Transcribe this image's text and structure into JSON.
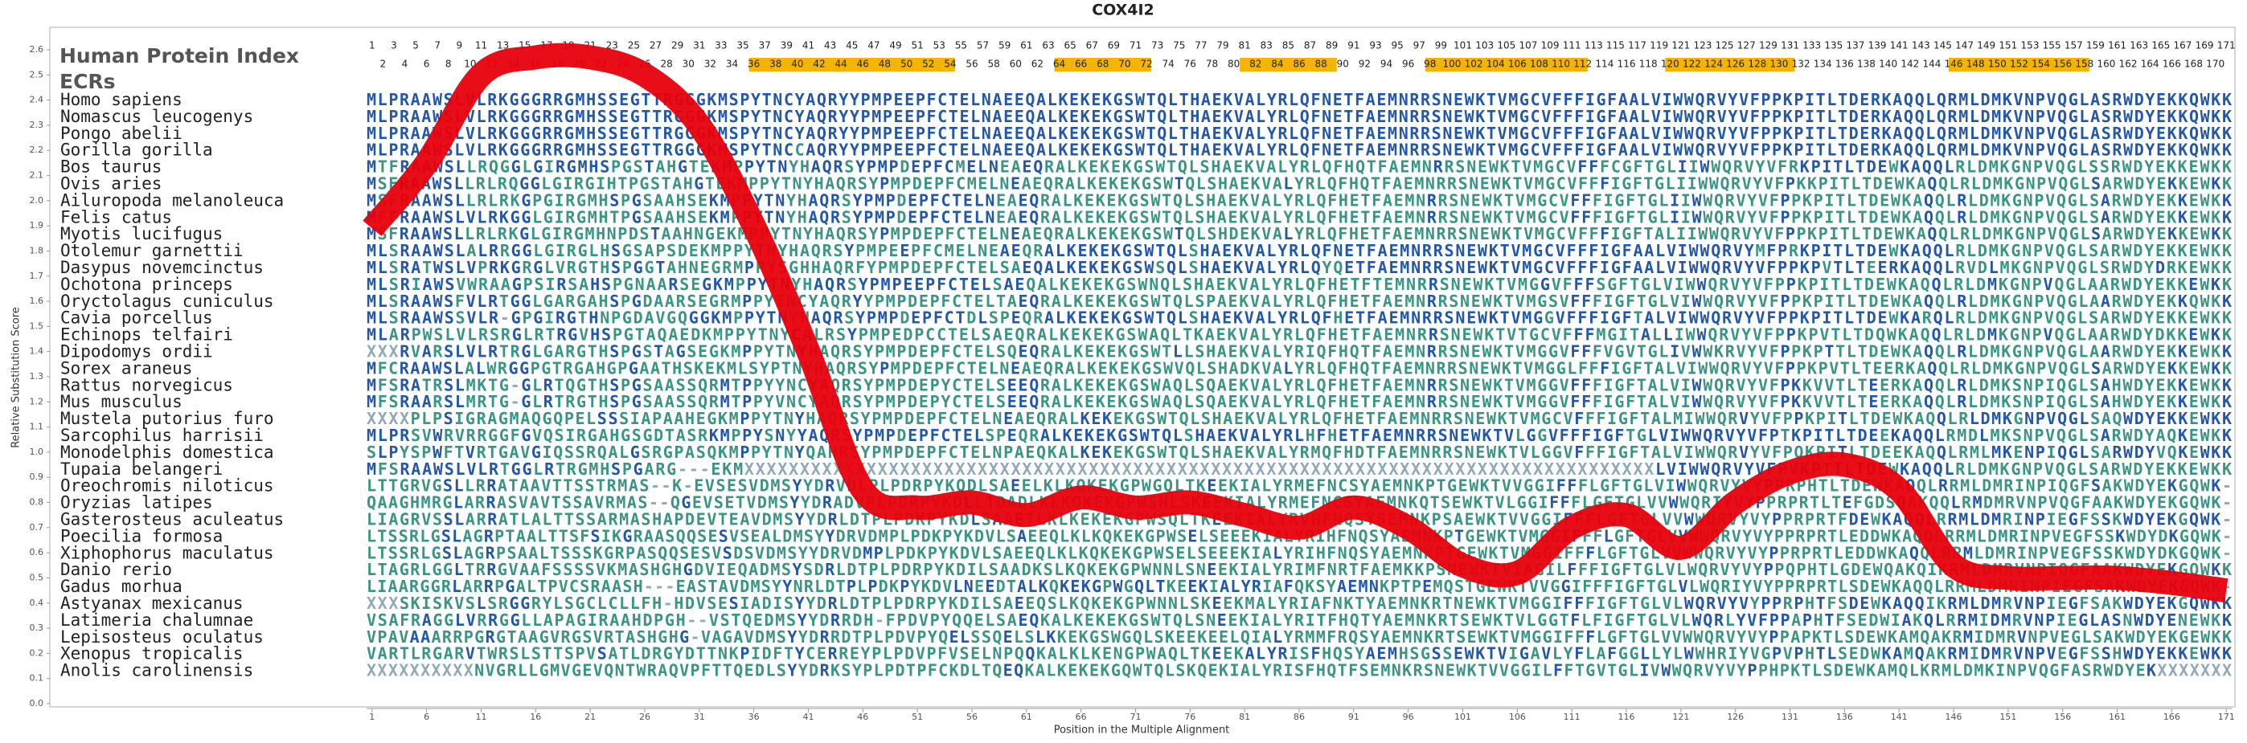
{
  "title": "COX4I2",
  "header": {
    "index_title": "Human Protein Index",
    "ecr_label": "ECRs"
  },
  "positions": [
    1,
    2,
    3,
    4,
    5,
    6,
    7,
    8,
    9,
    10,
    11,
    12,
    13,
    14,
    15,
    16,
    17,
    18,
    19,
    20,
    21,
    22,
    23,
    24,
    25,
    26,
    27,
    28,
    29,
    30,
    31,
    32,
    33,
    34,
    35,
    36,
    37,
    38,
    39,
    40,
    41,
    42,
    43,
    44,
    45,
    46,
    47,
    48,
    49,
    50,
    51,
    52,
    53,
    54,
    55,
    56,
    57,
    58,
    59,
    60,
    61,
    62,
    63,
    64,
    65,
    66,
    67,
    68,
    69,
    70,
    71,
    72,
    73,
    74,
    75,
    76,
    77,
    78,
    79,
    80,
    81,
    82,
    83,
    84,
    85,
    86,
    87,
    88,
    89,
    90,
    91,
    92,
    93,
    94,
    95,
    96,
    97,
    98,
    99,
    100,
    101,
    102,
    103,
    104,
    105,
    106,
    107,
    108,
    109,
    110,
    111,
    112,
    113,
    114,
    115,
    116,
    117,
    118,
    119,
    120,
    121,
    122,
    123,
    124,
    125,
    126,
    127,
    128,
    129,
    130,
    131,
    132,
    133,
    134,
    135,
    136,
    137,
    138,
    139,
    140,
    141,
    142,
    143,
    144,
    145,
    146,
    147,
    148,
    149,
    150,
    151,
    152,
    153,
    154,
    155,
    156,
    157,
    158,
    159,
    160,
    161,
    162,
    163,
    164,
    165,
    166,
    167,
    168,
    169,
    170,
    171
  ],
  "ecrs": [
    [
      36,
      54
    ],
    [
      64,
      72
    ],
    [
      81,
      89
    ],
    [
      98,
      112
    ],
    [
      120,
      131
    ],
    [
      146,
      158
    ]
  ],
  "ecr_color": "#f5b400",
  "alignment": {
    "rows": [
      {
        "species": "Homo sapiens",
        "sequence": "MLPRAAWSLVLRKGGGRRGMHSSEGTTRGGGKMSPYTNCYAQRYYPMPEEPFCTELNAEEQALKEKEKGSWTQLTHAEKVALYRLQFNETFAEMNRRSNEWKTVMGCVFFFIGFAALVIWWQRVYVFPPKPITLTDERKAQQLQRMLDMKVNPVQGLASRWDYEKKQWKK"
      },
      {
        "species": "Nomascus leucogenys",
        "sequence": "MLPRAAWSLVLRKGGGRRGMHSSEGTTRGGGKMSPYTNCYAQRYYPMPEEPFCTELNAEEQALKEKEKGSWTQLTHAEKVALYRLQFNETFAEMNRRSNEWKTVMGCVFFFIGFAALVIWWQRVYVFPPKPITLTDERKAQQLQRMLDMKVNPVQGLASRWDYEKKQWKK"
      },
      {
        "species": "Pongo abelii",
        "sequence": "MLPRAAWSLVLRKGGGRRGMHSSEGTTRGGGKMSPYTNCYAQRYYPMPEEPFCTELNAEEQALKEKEKGSWTQLTHAEKVALYRLQFNETFAEMNRRSNEWKTVMGCVFFFIGFAALVIWWQRVYVFPPKPITLTDERKAQQLQRMLDMKVNPVQGLASRWDYEKKQWKK"
      },
      {
        "species": "Gorilla gorilla",
        "sequence": "MLPRAAWSLVLRKGGGRRGMHSSEGTTRGGGKMSPYTNCCAQRYYPMPEEPFCTELNAEEQALKEKEKGSWTQLTHAEKVALYRLQFNETFAEMNRRSNEWKTVMGCVFFFIGFAALVIWWQRVYVFPPKPITLTDERKAQQLQRMLDMKVNPVQGLASRWDYEKKQWKK"
      },
      {
        "species": "Bos taurus",
        "sequence": "MTFRAAWSLLRQGGLGIRGMHSPGSTAHGTEKMPPYTNYHAQRSYPMPDEPFCMELNEAEQRALKEKEKGSWTQLSHAEKVALYRLQFHQTFAEMNRRSNEWKTVMGCVFFFCGFTGLIIWWQRVYVFRKPITLTDEWKAQQLRLDMKGNPVQGLSSRWDYEKKEWKK"
      },
      {
        "species": "Ovis aries",
        "sequence": "MSFRAAWSLLRLRQGGLGIRGIHTPGSTAHGTEKMPPYTNYHAQRSYPMPDEPFCMELNEAEQRALKEKEKGSWTQLSHAEKVALYRLQFHQTFAEMNRRSNEWKTVMGCVFFFIGFTGLIIWWQRVYVFPKKPITLTDEWKAQQLRLDMKGNPVQGLSARWDYEKKEWKK"
      },
      {
        "species": "Ailuropoda melanoleuca",
        "sequence": "MSFRAAWSLLRLRKGPGIRGMHSPGSAAHSEKMPPYTNYHAQRSYPMPDEPFCTELNEAEQRALKEKEKGSWTQLSHAEKVALYRLQFHETFAEMNRRSNEWKTVMGCVFFFIGFTGLIIWWQRVYVFPPKPITLTDEWKAQQLRLDMKGNPVQGLSARWDYEKKEWKK"
      },
      {
        "species": "Felis catus",
        "sequence": "MFFRAAWSLVLRKGGLGIRGMHTPGSAAHSEKMPPYTNYHAQRSYPMPDEPFCTELNEAEQRALKEKEKGSWTQLSHAEKVALYRLQFHETFAEMNRRSNEWKTVMGCVFFFIGFTGLIIWWQRVYVFPPKPITLTDEWKAQQLRLDMKGNPVQGLSARWDYEKKEWKK"
      },
      {
        "species": "Myotis lucifugus",
        "sequence": "MSFRAAWSLLRLRKGLGIRGMHNPDSTAAHNGEKMPPYTNYHAQRSYPMPDEPFCTELNEAEQRALKEKEKGSWTQLSHDEKVALYRLQFHETFAEMNRRSNEWKTVMGCVFFFIGFTALIIWWQRVYVFPPKPITLTDEWKAQQLRLDMKGNPVQGLSARWDYEKKEWKK"
      },
      {
        "species": "Otolemur garnettii",
        "sequence": "MLSRAAWSLALRRGGLGIRGLHSGSAPSDEKMPPYTNYHAQRSYPMPEEPFCMELNEAEQRALKEKEKGSWTQLSHAEKVALYRLQFNETFAEMNRRSNEWKTVMGCVFFFIGFAALVIWWQRVYMFPRKPITLTDEWKAQQLRLDMKGNPVQGLSARWDYEKKEWKK"
      },
      {
        "species": "Dasypus novemcinctus",
        "sequence": "MLSRATWSLVPRKGRGLVRGTHSPGGTAHNEGRMPPYSGHHAQRFYPMPDEPFCTELSAEQALKEKEKGSWSQLSHAEKVALYRLQYQETFAEMNRRSNEWKTVMGCVFFFIGFAALVIWWQRVYVFPPKPVTLTEERKAQQLRVDLMKGNPVQGLSRWDYDRKEWKK"
      },
      {
        "species": "Ochotona princeps",
        "sequence": "MLSRIAWSVWRAAGPSIRSAHSPGNAARSEGKMPPYTNYHAQRSYPMPEEPFCTELSAEQALKEKEKGSWNQLSHAEKVALYRLQFHETFTEMNRRSNEWKTVMGGVFFFSGFTGLVIWWQRVYVFPPKPITLTDEWKAQQLRLDMKGNPVQGLAARWDYEKKEWKK"
      },
      {
        "species": "Oryctolagus cuniculus",
        "sequence": "MLSRAAWSFVLRTGGLGARGAHSPGDAARSEGRMPPYTNCYAQRYYPMPDEPFCTELTAEQRALKEKEKGSWTQLSPAEKVALYRLQFHETFAEMNRRSNEWKTVMGSVFFFIGFTGLVIWWQRVYVFPPKPITLTDEWKAQQLRLDMKGNPVQGLAARWDYEKKQWKK"
      },
      {
        "species": "Cavia porcellus",
        "sequence": "MLSRAAWSSVLR-GPGIRGTHNPGDAVGQGGKMPPYTNYHAQRSYPMPDEPFCTDLSPEQRALKEKEKGSWTQLSHAEKVALYRLQFHETFAEMNRRSNEWKTVMGGVFFFIGFTALVIWWQRVYVFPPKPITLTDEWKARQLRLDMKGNPVQGLSARWDYEKKEWKK"
      },
      {
        "species": "Echinops telfairi",
        "sequence": "MLARPWSLVLRSRGLRTRGVHSPGTAQAEDKMPPYTNYCALRSYPMPEDPCCTELSAEQRALKEKEKGSWAQLTKAEKVALYRLQFHETFAEMNRRSNEWKTVTGCVFFFMGITALLIWWQRVYVFPPKPVTLTDQWKAQQLRLDMKGNPVQGLAARWDYDKKEWKK"
      },
      {
        "species": "Dipodomys ordii",
        "sequence": "XXXRVARSLVLRTRGLGARGTHSPGSTAGSEGKMPPYTNYHAQRSYPMPDEPFCTELSQEQRALKEKEKGSWTLLSHAEKVALYRIQFHQTFAEMNRRSNEWKTVMGGVFFFVGVTGLIVWWKRVYVFPPKPTTLTDEWKAQQLRLDMKGNPVQGLAARWDYEKKEWKK"
      },
      {
        "species": "Sorex araneus",
        "sequence": "MFCRAAWSLALWRGGPGTRGAHGPGAATHSKEKMLSYPTNYHAQRSYPMPDEPFCTELNEAEQRALKEKEKGSWVQLSHADKVALYRLQFHQTFAEMNRRSNEWKTVMGGLFFFIGFTALVIWWQRVYVFPPKPVTLTEERKAQQLRLDMKGNPVQGLSARWDYEKKEWKK"
      },
      {
        "species": "Rattus norvegicus",
        "sequence": "MFSRATRSLMKTG-GLRTQGTHSPGSAASSQRMTPPYYNCYAQRSYPMPDEPYCTELSEEQRALKEKEKGSWAQLSQAEKVALYRLQFHETFAEMNRRSNEWKTVMGGVFFFIGFTALVIWWQRVYVFPKKVVTLTEERKAQQLRLDMKSNPIQGLSAHWDYEKKEWKK"
      },
      {
        "species": "Mus musculus",
        "sequence": "MFSRAARSLMRTG-GLRTRGTHSPGSAASSQRMTPPYVNCYAQRSYPMPDEPYCTELSEEQRALKEKEKGSWAQLSQAEKVALYRLQFHETFAEMNRRSNEWKTVMGGVFFFIGFTALVIWWQRVYVFPKKVVTLTEERKAQQLRLDMKSNPIQGLSAHWDYEKKEWKK"
      },
      {
        "species": "Mustela putorius furo",
        "sequence": "XXXXPLPSIGRAGMAQGQPELSSSIAPAAHEGKMPPYTNYHAQRSYPMPDEPFCTELNEAEQRALKEKEKGSWTQLSHAEKVALYRLQFHETFAEMNRRSNEWKTVMGCVFFFIGFTALMIWWQRVYVFPPKPITLTDEWKAQQLRLDMKGNPVQGLSAQWDYEKKEWKK"
      },
      {
        "species": "Sarcophilus harrisii",
        "sequence": "MLPRSVWRVRRGGFGVQSIRGAHGSGDTASRKMPPYSNYYAQRSYPMPDEPFCTELSPEQRALKEKEKGSWTQLSHAEKVALYRLHFHETFAEMNRRSNEWKTVLGGVFFFIGFTGLVIWWQRVYVFPTKPITLTDEEKAQQLRMDLMKSNPVQGLSARWDYAQKEWKK"
      },
      {
        "species": "Monodelphis domestica",
        "sequence": "SLPYSPWFTVRTGAVGIQSSRQALGSRGPASQKMPPYTNYQAHRSYPMPDEPFCTELNPAEQKALKEKEKGSWTQLSHAEKVALYRMQFHDTFAEMNRRSNEWKTVLGGVFFFIGFTALVIWWQRVYVFPQKPITLTDEEKAQQLRMLMKENPIQGLSARWDYVQKEWKK"
      },
      {
        "species": "Tupaia belangeri",
        "sequence": "MFSRAAWSLVLRTGGLRTRGMHSPGARG---EKMXXXXXXXXXXXXXXXXXXXXXXXXXXXXXXXXXXXXXXXXXXXXXXXXXXXXXXXXXXXXXXXXXXXXXXXXXXXXXXXXXXLVIWWQRVYVFPVKPTTLTDEWKAQQLRLDMKGNPVQGLSARWDYEKKEWKK"
      },
      {
        "species": "Oreochromis niloticus",
        "sequence": "LTTGRVGSLLRRATAAVTTSSTRMAS--K-EVSESVDMSYYDRVDLPLPDRPYKQDLSAEELKLKQKEKGPWGQLTKEEKIALYRMEFNCSYAEMNKPTGEWKTVVGGIFFFLGFTGLVIWWQRVYVYPPRPHTLTDEWKAQQLRRMLDMRINPIQGFSAKWDYEKGQWK-"
      },
      {
        "species": "Oryzias latipes",
        "sequence": "QAAGHMRGLARRASVAVTSSAVRMAS--QGEVSETVDMSYYDRADVPLPDRPYKDLLTDADLKLKQKEKGPWSHLSKEEKIALYRMEFNCSYAEMNKQTSEWKTVLGGIFFFLGFTGLVVWWQRIYVYPPRPRTLTEFGDSQAKQQLRMDMRVNPVQGFAAKWDYEKGQWK-"
      },
      {
        "species": "Gasterosteus aculeatus",
        "sequence": "LIAGRVSSLARRATLALTTSSARMASHAPDEVTEAVDMSYYDRLDTPLPDKPYKDLSAAETLKLKEKEKGPWSQLTKEEKIALYRVHFNQSYSEMNKPSAEWKTVVGGIFFFLGFTGLVVWWQRVYVYPPRPRTFDEWKAQQLRRMLDMRINPIEGFSSKWDYEKGQWK-"
      },
      {
        "species": "Poecilia formosa",
        "sequence": "LTSSRLGSLAGRPTAALTTSFSIKGRAASQQSESVSEALDMSYYDRVDMPLPDKPYKDVLSAEEQLKLKQKEKGPWSELSEEEKIALYRIHFNQSYAEMNKPTGEWKTVMGGIFFFLGFTGLVVWWQRVYVYPPRPRTLEDDWKAQQLRRMLDMRINPVEGFSSKWDYDKGQWK-"
      },
      {
        "species": "Xiphophorus maculatus",
        "sequence": "LTSSRLGSLAGRPSAALTSSSKGRPASQQSESVSDSVDMSYYDRVDMPLPDKPYKDVLSAEEQLKLKQKEKGPWSELSEEEKIALYRIHFNQSYAEMNKPTGEWKTVMGGIFFFLGFTGLVVWWQRVYVYPPRPRTLEDDWKAQQLRRMLDMRINPVEGFSSKWDYDKGQWK-"
      },
      {
        "species": "Danio rerio",
        "sequence": "LTAGRLGGLTRRGVAAFSSSSVKMASHGHGDVIEQADMSYSDRLDTPLPDRPYKDILSAADKSLKQKEKGPWNNLSNEEKIALYRIMFNRTFAEMKKPSNEWKTVIAGILFFFIGFTGLVLWQRVYVYPPQPHTLGDEWQAKQIKRMLDMRVNPIQGFAAKWDYEKGQWKK"
      },
      {
        "species": "Gadus morhua",
        "sequence": "LIAARGGRLARRPGALTPVCSRAASH---EASTAVDMSYYNRLDTPLPDKPYKDVLNEEDTALKQKEKGPWGQLTKEEKIALYRIAFQKSYAEMNKPTPEMQSTGEWKTVVGGIFFFIGFTGLVLWQRIYVYPPRPRTLSDEWKAQQLRRMLDMRINPIEGFSAKWDYEKGQWK-"
      },
      {
        "species": "Astyanax mexicanus",
        "sequence": "XXXSKISKVSLSRGGRYLSGCLCLLFH-HDVSESIADISYYDRLDTPLPDRPYKDILSAEEQSLKQKEKGPWNNLSKEEKMALYRIAFNKTYAEMNKRTNEWKTVMGGIFFFIGFTGLVLWQRVYVYPPRPHTFSDEWKAQQIKRMLDMRVNPIEGFSAKWDYEKGQWKK"
      },
      {
        "species": "Latimeria chalumnae",
        "sequence": "VSAFRAGGLVRRGGLLAPAGIRAAHDPGH--VSTQEDMSYYDRRDH-FPDVPYQQELSAEQKALKEKEKGSWTQLSNEEKIALYRITFHQTYAEMNKRTSEWKTVLGGTFLFIGFTGLVLWQRLYVFPPAPHTFSEDWIAKQLRRMIDMRVNPIEGLASNWDYENEWKK"
      },
      {
        "species": "Lepisosteus oculatus",
        "sequence": "VPAVAAARRPGRGTAAGVRGSVRTASHGHG-VAGAVDMSYYDRRDTPLPDVPYQELSSQELSLKKEKGSWGQLSKEEKEELQIALYRMMFRQSYAEMNKRTSEWKTVMGGIFFFLGFTGLVVWWQRVYVYPPAPKTLSDEWKAMQAKRMIDMRVNPVEGLSAKWDYEKGEWKK"
      },
      {
        "species": "Xenopus tropicalis",
        "sequence": "VARTLRGARVTWRSLSTTSPVSATLDRGYDTTNKPIDFTYCERREYPLPDVPFVSELNPQQKALKLKENGPWAQLTKEEKALYRISFHQSYAEMHSGSSEWKTVIGAVLYFLAFGGLLYLWWHRIYVGPVPHTLSEDWKAMQAKRMIDMRVNPVEGFSSHWDYEKKEWKK"
      },
      {
        "species": "Anolis carolinensis",
        "sequence": "XXXXXXXXXXNVGRLLGMVGEVQNTWRAQVPFTTQEDLSYYDRKSYPLPDTPFCKDLTQEQKALKEKEKGQWTQLSKQEKIALYRISFHQTFSEMNKRSNEWKTVVGGILFFTGVTGLIVWWQRVYVYPPHPKTLSDEWKAMQLKRMLDMKINPVQGFASRWDYEKXXXXXXX"
      }
    ]
  },
  "chart_data": {
    "type": "line",
    "x": [
      1,
      6,
      11,
      16,
      21,
      26,
      31,
      36,
      41,
      46,
      51,
      56,
      61,
      66,
      71,
      76,
      81,
      86,
      91,
      96,
      101,
      106,
      111,
      116,
      121,
      126,
      131,
      136,
      141,
      146,
      151,
      156,
      161,
      166,
      171
    ],
    "series": [
      {
        "color": "#e8000b",
        "values": [
          1.89,
          2.15,
          2.5,
          2.57,
          2.57,
          2.5,
          2.3,
          1.9,
          1.4,
          0.85,
          0.78,
          0.8,
          0.75,
          0.82,
          0.78,
          0.8,
          0.75,
          0.7,
          0.78,
          0.7,
          0.55,
          0.52,
          0.7,
          0.75,
          0.62,
          0.8,
          0.92,
          0.95,
          0.85,
          0.55,
          0.5,
          0.5,
          0.5,
          0.48,
          0.45
        ]
      }
    ],
    "xlim": [
      0.5,
      171.5
    ],
    "ylim": [
      0,
      2.6
    ],
    "xticks": [
      1,
      6,
      11,
      16,
      21,
      26,
      31,
      36,
      41,
      46,
      51,
      56,
      61,
      66,
      71,
      76,
      81,
      86,
      91,
      96,
      101,
      106,
      111,
      116,
      121,
      126,
      131,
      136,
      141,
      146,
      151,
      156,
      161,
      166,
      171
    ],
    "yticks": [
      {
        "value": 0,
        "label": "0.0"
      },
      0.1,
      0.2,
      0.3,
      0.4,
      0.5,
      0.6,
      0.7,
      0.8,
      0.9,
      {
        "value": 1,
        "label": "1.0"
      },
      1.1,
      1.2,
      1.3,
      1.4,
      1.5,
      1.6,
      1.7,
      1.8,
      1.9,
      {
        "value": 2,
        "label": "2.0"
      },
      2.1,
      2.2,
      2.3,
      2.4,
      2.5,
      2.6
    ],
    "xlabel": "Position in the Multiple Alignment",
    "ylabel": "Relative Substitution Score"
  }
}
